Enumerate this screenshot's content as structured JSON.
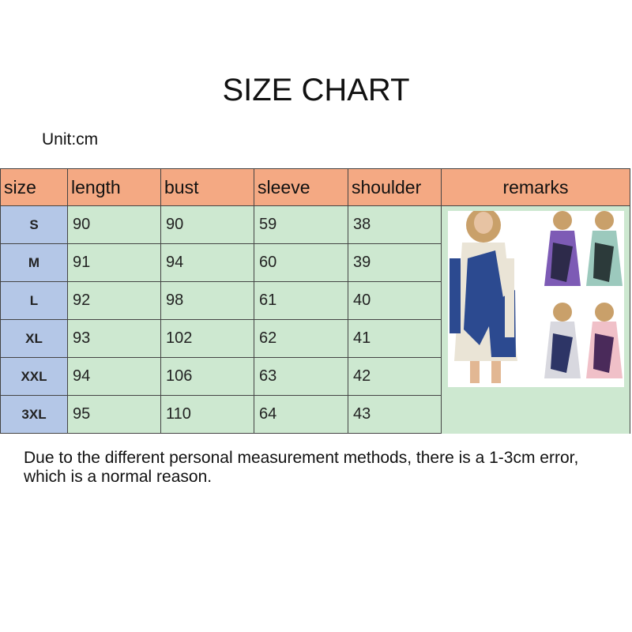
{
  "title": "SIZE CHART",
  "unit": "Unit:cm",
  "table": {
    "headers": [
      "size",
      "length",
      "bust",
      "sleeve",
      "shoulder",
      "remarks"
    ],
    "rows": [
      {
        "size": "S",
        "length": "90",
        "bust": "90",
        "sleeve": "59",
        "shoulder": "38"
      },
      {
        "size": "M",
        "length": "91",
        "bust": "94",
        "sleeve": "60",
        "shoulder": "39"
      },
      {
        "size": "L",
        "length": "92",
        "bust": "98",
        "sleeve": "61",
        "shoulder": "40"
      },
      {
        "size": "XL",
        "length": "93",
        "bust": "102",
        "sleeve": "62",
        "shoulder": "41"
      },
      {
        "size": "XXL",
        "length": "94",
        "bust": "106",
        "sleeve": "63",
        "shoulder": "42"
      },
      {
        "size": "3XL",
        "length": "95",
        "bust": "110",
        "sleeve": "64",
        "shoulder": "43"
      }
    ]
  },
  "note": "Due to the different personal measurement methods, there is a 1-3cm error, which is a normal reason.",
  "colors": {
    "header": "#f4a983",
    "size_column": "#b4c7e7",
    "cells": "#cde8d0"
  }
}
